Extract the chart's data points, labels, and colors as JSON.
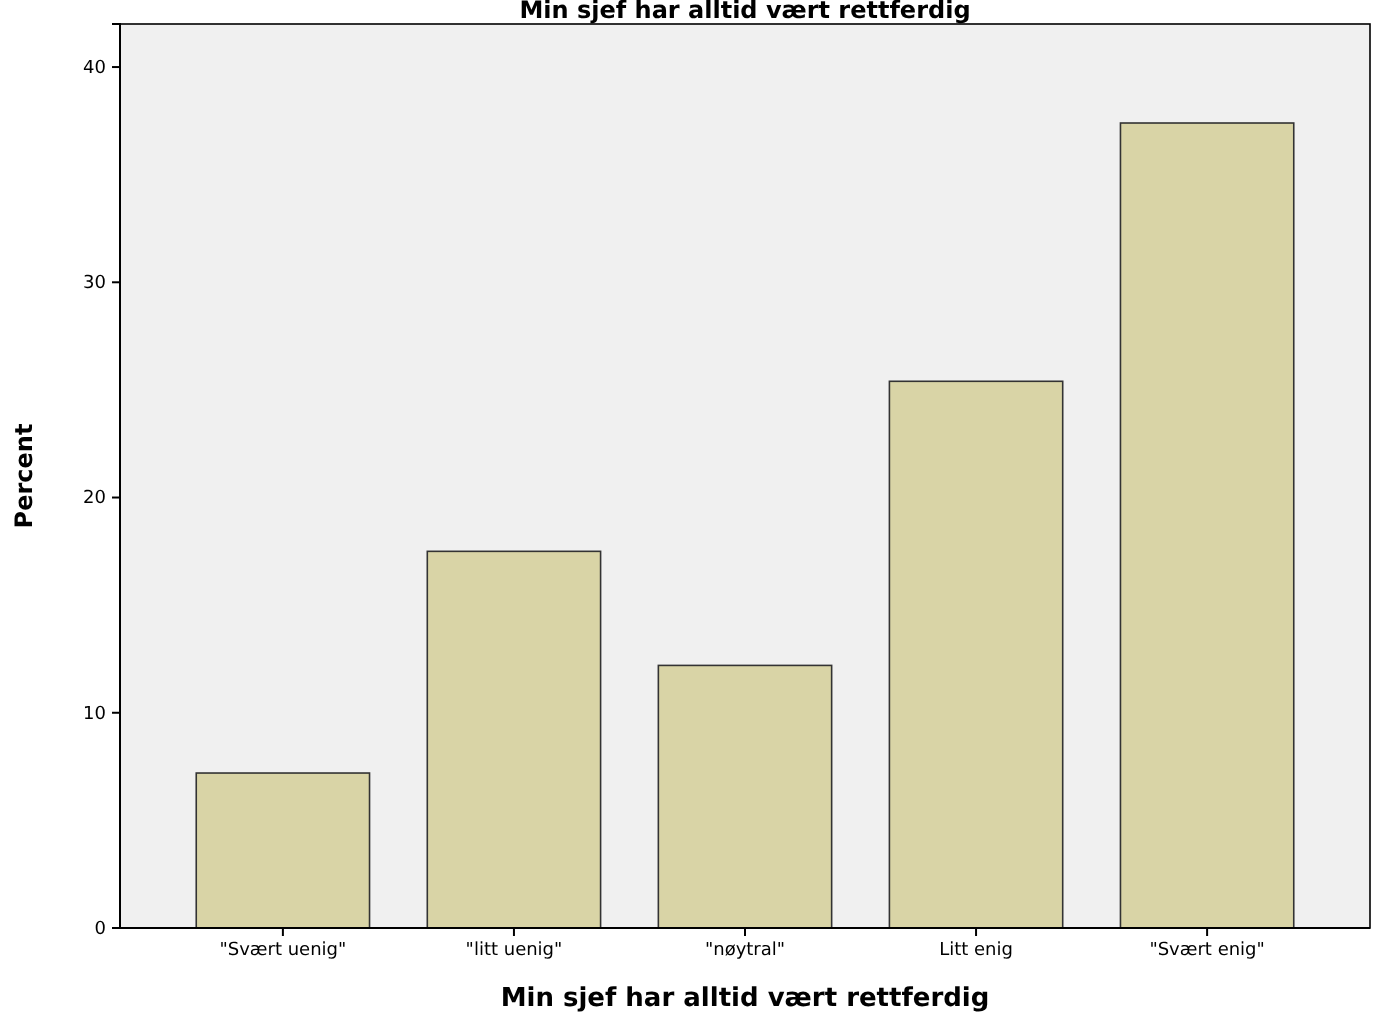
{
  "chart_data": {
    "type": "bar",
    "title": "Min sjef har alltid vært rettferdig",
    "xlabel": "Min sjef har alltid vært rettferdig",
    "ylabel": "Percent",
    "categories": [
      "\"Svært uenig\"",
      "\"litt uenig\"",
      "\"nøytral\"",
      "Litt enig",
      "\"Svært enig\""
    ],
    "values": [
      7.2,
      17.5,
      12.2,
      25.4,
      37.4
    ],
    "color": "#d9d4a6",
    "ylim": [
      0,
      42
    ],
    "yticks": [
      0,
      10,
      20,
      30,
      40
    ],
    "grid": false
  }
}
